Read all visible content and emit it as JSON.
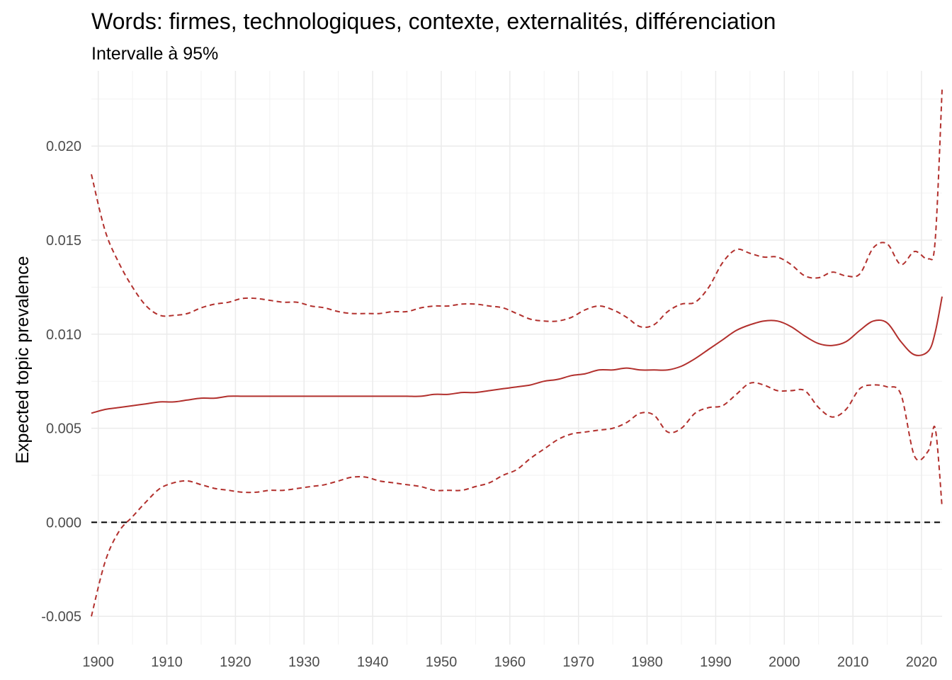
{
  "chart_data": {
    "type": "line",
    "title": "Words: firmes, technologiques, contexte, externalités, différenciation",
    "subtitle": "Intervalle à 95%",
    "xlabel": "",
    "ylabel": "Expected topic prevalence",
    "xlim": [
      1899,
      2023
    ],
    "ylim": [
      -0.0065,
      0.024
    ],
    "x_ticks": [
      1900,
      1910,
      1920,
      1930,
      1940,
      1950,
      1960,
      1970,
      1980,
      1990,
      2000,
      2010,
      2020
    ],
    "x_tick_labels": [
      "1900",
      "1910",
      "1920",
      "1930",
      "1940",
      "1950",
      "1960",
      "1970",
      "1980",
      "1990",
      "2000",
      "2010",
      "2020"
    ],
    "y_ticks": [
      -0.005,
      0.0,
      0.005,
      0.01,
      0.015,
      0.02
    ],
    "y_tick_labels": [
      "-0.005",
      "0.000",
      "0.005",
      "0.010",
      "0.015",
      "0.020"
    ],
    "grid": true,
    "reference_line": 0.0,
    "line_color": "#b2302d",
    "x": [
      1899,
      1901,
      1903,
      1905,
      1907,
      1909,
      1911,
      1913,
      1915,
      1917,
      1919,
      1921,
      1923,
      1925,
      1927,
      1929,
      1931,
      1933,
      1935,
      1937,
      1939,
      1941,
      1943,
      1945,
      1947,
      1949,
      1951,
      1953,
      1955,
      1957,
      1959,
      1961,
      1963,
      1965,
      1967,
      1969,
      1971,
      1973,
      1975,
      1977,
      1979,
      1981,
      1983,
      1985,
      1987,
      1989,
      1991,
      1993,
      1995,
      1997,
      1999,
      2001,
      2003,
      2005,
      2007,
      2009,
      2011,
      2013,
      2015,
      2017,
      2019,
      2021,
      2022,
      2023
    ],
    "series": [
      {
        "style": "solid",
        "values": [
          0.0058,
          0.006,
          0.0061,
          0.0062,
          0.0063,
          0.0064,
          0.0064,
          0.0065,
          0.0066,
          0.0066,
          0.0067,
          0.0067,
          0.0067,
          0.0067,
          0.0067,
          0.0067,
          0.0067,
          0.0067,
          0.0067,
          0.0067,
          0.0067,
          0.0067,
          0.0067,
          0.0067,
          0.0067,
          0.0068,
          0.0068,
          0.0069,
          0.0069,
          0.007,
          0.0071,
          0.0072,
          0.0073,
          0.0075,
          0.0076,
          0.0078,
          0.0079,
          0.0081,
          0.0081,
          0.0082,
          0.0081,
          0.0081,
          0.0081,
          0.0083,
          0.0087,
          0.0092,
          0.0097,
          0.0102,
          0.0105,
          0.0107,
          0.0107,
          0.0104,
          0.0099,
          0.0095,
          0.0094,
          0.0096,
          0.0102,
          0.0107,
          0.0106,
          0.0096,
          0.0089,
          0.0091,
          0.0101,
          0.012
        ]
      },
      {
        "style": "dashed",
        "values": [
          0.0185,
          0.0155,
          0.0138,
          0.0125,
          0.0115,
          0.011,
          0.011,
          0.0111,
          0.0114,
          0.0116,
          0.0117,
          0.0119,
          0.0119,
          0.0118,
          0.0117,
          0.0117,
          0.0115,
          0.0114,
          0.0112,
          0.0111,
          0.0111,
          0.0111,
          0.0112,
          0.0112,
          0.0114,
          0.0115,
          0.0115,
          0.0116,
          0.0116,
          0.0115,
          0.0114,
          0.0111,
          0.0108,
          0.0107,
          0.0107,
          0.0109,
          0.0113,
          0.0115,
          0.0113,
          0.0109,
          0.0104,
          0.0105,
          0.0112,
          0.0116,
          0.0117,
          0.0125,
          0.0138,
          0.0145,
          0.0143,
          0.0141,
          0.0141,
          0.0137,
          0.0131,
          0.013,
          0.0133,
          0.0131,
          0.0132,
          0.0146,
          0.0148,
          0.0137,
          0.0144,
          0.014,
          0.015,
          0.023
        ]
      },
      {
        "style": "dashed",
        "values": [
          -0.005,
          -0.0021,
          -0.0005,
          0.0003,
          0.0011,
          0.0018,
          0.0021,
          0.0022,
          0.002,
          0.0018,
          0.0017,
          0.0016,
          0.0016,
          0.0017,
          0.0017,
          0.0018,
          0.0019,
          0.002,
          0.0022,
          0.0024,
          0.0024,
          0.0022,
          0.0021,
          0.002,
          0.0019,
          0.0017,
          0.0017,
          0.0017,
          0.0019,
          0.0021,
          0.0025,
          0.0028,
          0.0034,
          0.0039,
          0.0044,
          0.0047,
          0.0048,
          0.0049,
          0.005,
          0.0053,
          0.0058,
          0.0057,
          0.0048,
          0.005,
          0.0058,
          0.0061,
          0.0062,
          0.0068,
          0.0074,
          0.0073,
          0.007,
          0.007,
          0.007,
          0.0061,
          0.0056,
          0.006,
          0.0071,
          0.0073,
          0.0072,
          0.0068,
          0.0035,
          0.0038,
          0.005,
          0.0008
        ]
      }
    ]
  }
}
